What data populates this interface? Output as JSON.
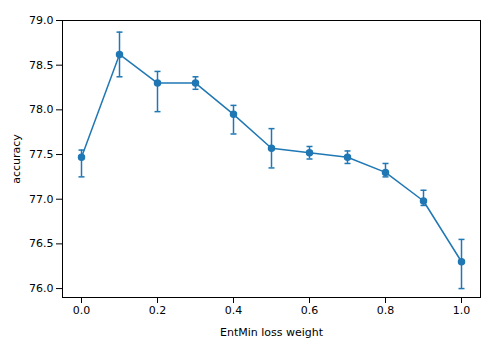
{
  "chart_data": {
    "type": "line",
    "xlabel": "EntMin loss weight",
    "ylabel": "accuracy",
    "x": [
      0.0,
      0.1,
      0.2,
      0.3,
      0.4,
      0.5,
      0.6,
      0.7,
      0.8,
      0.9,
      1.0
    ],
    "values": [
      77.47,
      78.62,
      78.3,
      78.3,
      77.95,
      77.57,
      77.52,
      77.47,
      77.3,
      76.98,
      76.3
    ],
    "yerr_upper": [
      0.08,
      0.25,
      0.13,
      0.07,
      0.1,
      0.22,
      0.07,
      0.07,
      0.1,
      0.12,
      0.25
    ],
    "yerr_lower": [
      0.22,
      0.25,
      0.32,
      0.07,
      0.22,
      0.22,
      0.07,
      0.07,
      0.05,
      0.05,
      0.3
    ],
    "color": "#1f77b4",
    "marker": "circle",
    "xlim": [
      -0.05,
      1.05
    ],
    "ylim": [
      75.9,
      79.0
    ],
    "xticks": [
      {
        "value": 0.0,
        "label": "0.0"
      },
      0.2,
      0.4,
      0.6,
      0.8,
      {
        "value": 1.0,
        "label": "1.0"
      }
    ],
    "yticks": [
      {
        "value": 76.0,
        "label": "76.0"
      },
      {
        "value": 76.5,
        "label": "76.5"
      },
      {
        "value": 77.0,
        "label": "77.0"
      },
      {
        "value": 77.5,
        "label": "77.5"
      },
      {
        "value": 78.0,
        "label": "78.0"
      },
      {
        "value": 78.5,
        "label": "78.5"
      },
      {
        "value": 79.0,
        "label": "79.0"
      }
    ],
    "grid": false
  }
}
